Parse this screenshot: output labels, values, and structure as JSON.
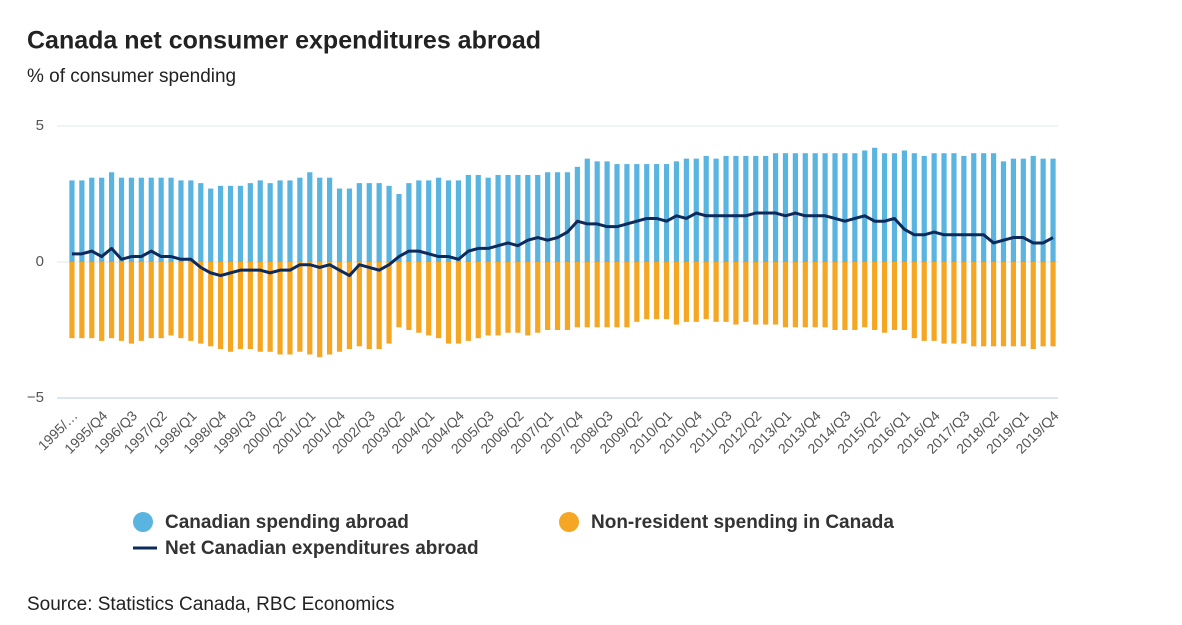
{
  "chart_data": {
    "type": "bar",
    "title": "Canada net consumer expenditures abroad",
    "subtitle": "% of consumer spending",
    "source": "Source: Statistics Canada, RBC Economics",
    "categories": [
      "1995/…",
      null,
      null,
      "1995/Q4",
      null,
      null,
      "1996/Q3",
      null,
      null,
      "1997/Q2",
      null,
      null,
      "1998/Q1",
      null,
      null,
      "1998/Q4",
      null,
      null,
      "1999/Q3",
      null,
      null,
      "2000/Q2",
      null,
      null,
      "2001/Q1",
      null,
      null,
      "2001/Q4",
      null,
      null,
      "2002/Q3",
      null,
      null,
      "2003/Q2",
      null,
      null,
      "2004/Q1",
      null,
      null,
      "2004/Q4",
      null,
      null,
      "2005/Q3",
      null,
      null,
      "2006/Q2",
      null,
      null,
      "2007/Q1",
      null,
      null,
      "2007/Q4",
      null,
      null,
      "2008/Q3",
      null,
      null,
      "2009/Q2",
      null,
      null,
      "2010/Q1",
      null,
      null,
      "2010/Q4",
      null,
      null,
      "2011/Q3",
      null,
      null,
      "2012/Q2",
      null,
      null,
      "2013/Q1",
      null,
      null,
      "2013/Q4",
      null,
      null,
      "2014/Q3",
      null,
      null,
      "2015/Q2",
      null,
      null,
      "2016/Q1",
      null,
      null,
      "2016/Q4",
      null,
      null,
      "2017/Q3",
      null,
      null,
      "2018/Q2",
      null,
      null,
      "2019/Q1",
      null,
      null,
      "2019/Q4"
    ],
    "series": [
      {
        "name": "Canadian spending abroad",
        "type": "bar",
        "color": "#5ab4e0",
        "values": [
          3.0,
          3.0,
          3.1,
          3.1,
          3.3,
          3.1,
          3.1,
          3.1,
          3.1,
          3.1,
          3.1,
          3.0,
          3.0,
          2.9,
          2.7,
          2.8,
          2.8,
          2.8,
          2.9,
          3.0,
          2.9,
          3.0,
          3.0,
          3.1,
          3.3,
          3.1,
          3.1,
          2.7,
          2.7,
          2.9,
          2.9,
          2.9,
          2.8,
          2.5,
          2.9,
          3.0,
          3.0,
          3.1,
          3.0,
          3.0,
          3.2,
          3.2,
          3.1,
          3.2,
          3.2,
          3.2,
          3.2,
          3.2,
          3.3,
          3.3,
          3.3,
          3.5,
          3.8,
          3.7,
          3.7,
          3.6,
          3.6,
          3.6,
          3.6,
          3.6,
          3.6,
          3.7,
          3.8,
          3.8,
          3.9,
          3.8,
          3.9,
          3.9,
          3.9,
          3.9,
          3.9,
          4.0,
          4.0,
          4.0,
          4.0,
          4.0,
          4.0,
          4.0,
          4.0,
          4.0,
          4.1,
          4.2,
          4.0,
          4.0,
          4.1,
          4.0,
          3.9,
          4.0,
          4.0,
          4.0,
          3.9,
          4.0,
          4.0,
          4.0,
          3.7,
          3.8,
          3.8,
          3.9,
          3.8,
          3.8
        ]
      },
      {
        "name": "Non-resident spending in Canada",
        "type": "bar",
        "color": "#f5a623",
        "values": [
          -2.8,
          -2.8,
          -2.8,
          -2.9,
          -2.8,
          -2.9,
          -3.0,
          -2.9,
          -2.8,
          -2.8,
          -2.7,
          -2.8,
          -2.9,
          -3.0,
          -3.1,
          -3.2,
          -3.3,
          -3.2,
          -3.2,
          -3.3,
          -3.3,
          -3.4,
          -3.4,
          -3.3,
          -3.4,
          -3.5,
          -3.4,
          -3.3,
          -3.2,
          -3.1,
          -3.2,
          -3.2,
          -3.0,
          -2.4,
          -2.5,
          -2.6,
          -2.7,
          -2.8,
          -3.0,
          -3.0,
          -2.9,
          -2.8,
          -2.7,
          -2.7,
          -2.6,
          -2.6,
          -2.7,
          -2.6,
          -2.5,
          -2.5,
          -2.5,
          -2.4,
          -2.4,
          -2.4,
          -2.4,
          -2.4,
          -2.4,
          -2.2,
          -2.1,
          -2.1,
          -2.1,
          -2.3,
          -2.2,
          -2.2,
          -2.1,
          -2.2,
          -2.2,
          -2.3,
          -2.2,
          -2.3,
          -2.3,
          -2.3,
          -2.4,
          -2.4,
          -2.4,
          -2.4,
          -2.4,
          -2.5,
          -2.5,
          -2.5,
          -2.4,
          -2.5,
          -2.6,
          -2.5,
          -2.5,
          -2.8,
          -2.9,
          -2.9,
          -3.0,
          -3.0,
          -3.0,
          -3.1,
          -3.1,
          -3.1,
          -3.1,
          -3.1,
          -3.1,
          -3.2,
          -3.1,
          -3.1
        ]
      },
      {
        "name": "Net Canadian expenditures abroad",
        "type": "line",
        "color": "#0d2a5c",
        "values": [
          0.3,
          0.3,
          0.4,
          0.2,
          0.5,
          0.1,
          0.2,
          0.2,
          0.4,
          0.2,
          0.2,
          0.1,
          0.1,
          -0.2,
          -0.4,
          -0.5,
          -0.4,
          -0.3,
          -0.3,
          -0.3,
          -0.4,
          -0.3,
          -0.3,
          -0.1,
          -0.1,
          -0.2,
          -0.1,
          -0.3,
          -0.5,
          -0.1,
          -0.2,
          -0.3,
          -0.1,
          0.2,
          0.4,
          0.4,
          0.3,
          0.2,
          0.2,
          0.1,
          0.4,
          0.5,
          0.5,
          0.6,
          0.7,
          0.6,
          0.8,
          0.9,
          0.8,
          0.9,
          1.1,
          1.5,
          1.4,
          1.4,
          1.3,
          1.3,
          1.4,
          1.5,
          1.6,
          1.6,
          1.5,
          1.7,
          1.6,
          1.8,
          1.7,
          1.7,
          1.7,
          1.7,
          1.7,
          1.8,
          1.8,
          1.8,
          1.7,
          1.8,
          1.7,
          1.7,
          1.7,
          1.6,
          1.5,
          1.6,
          1.7,
          1.5,
          1.5,
          1.6,
          1.2,
          1.0,
          1.0,
          1.1,
          1.0,
          1.0,
          1.0,
          1.0,
          1.0,
          0.7,
          0.8,
          0.9,
          0.9,
          0.7,
          0.7,
          0.9
        ]
      }
    ],
    "ylim": [
      -5,
      5
    ],
    "yticks": [
      {
        "value": -5,
        "label": "−5"
      },
      0,
      5
    ],
    "grid": true
  }
}
